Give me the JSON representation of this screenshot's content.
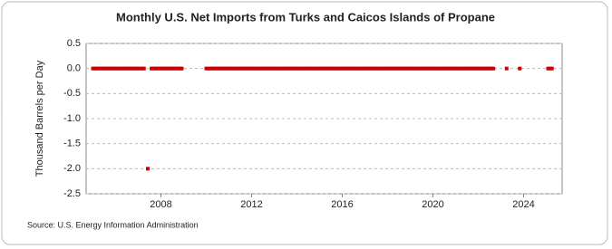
{
  "chart_data": {
    "type": "line",
    "title": "Monthly U.S. Net Imports from Turks and Caicos Islands of Propane",
    "y_label": "Thousand Barrels per Day",
    "source": "Source: U.S. Energy Information Administration",
    "color": "#cc0000",
    "xlim": [
      2004.7,
      2025.7
    ],
    "xticks": [
      2008,
      2012,
      2016,
      2020,
      2024
    ],
    "ylim": [
      -2.5,
      0.5
    ],
    "yticks": [
      0.5,
      {
        "value": 0,
        "label": "0.0"
      },
      -0.5,
      {
        "value": -1,
        "label": "-1.0"
      },
      -1.5,
      {
        "value": -2,
        "label": "-2.0"
      },
      -2.5
    ],
    "grid": true,
    "x": [
      2005,
      2005.08,
      2005.17,
      2005.25,
      2005.33,
      2005.42,
      2005.5,
      2005.58,
      2005.67,
      2005.75,
      2005.83,
      2005.92,
      2006,
      2006.08,
      2006.17,
      2006.25,
      2006.33,
      2006.42,
      2006.5,
      2006.58,
      2006.67,
      2006.75,
      2006.83,
      2006.92,
      2007,
      2007.08,
      2007.17,
      2007.25,
      2007.33,
      2007.42,
      2007.5,
      2007.58,
      2007.67,
      2007.75,
      2007.83,
      2007.92,
      2008,
      2008.08,
      2008.17,
      2008.25,
      2008.33,
      2008.42,
      2008.5,
      2008.58,
      2008.67,
      2008.75,
      2008.83,
      2008.92,
      2009.5,
      2010,
      2010.08,
      2010.17,
      2010.25,
      2010.33,
      2010.42,
      2010.5,
      2010.58,
      2010.67,
      2010.75,
      2010.83,
      2010.92,
      2011,
      2011.08,
      2011.17,
      2011.25,
      2011.33,
      2011.42,
      2011.5,
      2011.58,
      2011.67,
      2011.75,
      2011.83,
      2011.92,
      2012,
      2012.08,
      2012.17,
      2012.25,
      2012.33,
      2012.42,
      2012.5,
      2012.58,
      2012.67,
      2012.75,
      2012.83,
      2012.92,
      2013,
      2013.08,
      2013.17,
      2013.25,
      2013.33,
      2013.42,
      2013.5,
      2013.58,
      2013.67,
      2013.75,
      2013.83,
      2013.92,
      2014,
      2014.08,
      2014.17,
      2014.25,
      2014.33,
      2014.42,
      2014.5,
      2014.58,
      2014.67,
      2014.75,
      2014.83,
      2014.92,
      2015,
      2015.08,
      2015.17,
      2015.25,
      2015.33,
      2015.42,
      2015.5,
      2015.58,
      2015.67,
      2015.75,
      2015.83,
      2015.92,
      2016,
      2016.08,
      2016.17,
      2016.25,
      2016.33,
      2016.42,
      2016.5,
      2016.58,
      2016.67,
      2016.75,
      2016.83,
      2016.92,
      2017,
      2017.08,
      2017.17,
      2017.25,
      2017.33,
      2017.42,
      2017.5,
      2017.58,
      2017.67,
      2017.75,
      2017.83,
      2017.92,
      2018,
      2018.08,
      2018.17,
      2018.25,
      2018.33,
      2018.42,
      2018.5,
      2018.58,
      2018.67,
      2018.75,
      2018.83,
      2018.92,
      2019,
      2019.08,
      2019.17,
      2019.25,
      2019.33,
      2019.42,
      2019.5,
      2019.58,
      2019.67,
      2019.75,
      2019.83,
      2019.92,
      2020,
      2020.08,
      2020.17,
      2020.25,
      2020.33,
      2020.42,
      2020.5,
      2020.58,
      2020.67,
      2020.75,
      2020.83,
      2020.92,
      2021,
      2021.08,
      2021.17,
      2021.25,
      2021.33,
      2021.42,
      2021.5,
      2021.58,
      2021.67,
      2021.75,
      2021.83,
      2021.92,
      2022,
      2022.08,
      2022.17,
      2022.25,
      2022.33,
      2022.42,
      2022.5,
      2022.58,
      2022.67,
      2023,
      2023.25,
      2023.5,
      2023.83,
      2024.5,
      2025.08,
      2025.17,
      2025.25
    ],
    "values": [
      0,
      0,
      0,
      0,
      0,
      0,
      0,
      0,
      0,
      0,
      0,
      0,
      0,
      0,
      0,
      0,
      0,
      0,
      0,
      0,
      0,
      0,
      0,
      0,
      0,
      0,
      0,
      0,
      null,
      -2,
      null,
      0,
      0,
      0,
      0,
      0,
      0,
      0,
      0,
      0,
      0,
      0,
      0,
      0,
      0,
      0,
      0,
      0,
      null,
      0,
      0,
      0,
      0,
      0,
      0,
      0,
      0,
      0,
      0,
      0,
      0,
      0,
      0,
      0,
      0,
      0,
      0,
      0,
      0,
      0,
      0,
      0,
      0,
      0,
      0,
      0,
      0,
      0,
      0,
      0,
      0,
      0,
      0,
      0,
      0,
      0,
      0,
      0,
      0,
      0,
      0,
      0,
      0,
      0,
      0,
      0,
      0,
      0,
      0,
      0,
      0,
      0,
      0,
      0,
      0,
      0,
      0,
      0,
      0,
      0,
      0,
      0,
      0,
      0,
      0,
      0,
      0,
      0,
      0,
      0,
      0,
      0,
      0,
      0,
      0,
      0,
      0,
      0,
      0,
      0,
      0,
      0,
      0,
      0,
      0,
      0,
      0,
      0,
      0,
      0,
      0,
      0,
      0,
      0,
      0,
      0,
      0,
      0,
      0,
      0,
      0,
      0,
      0,
      0,
      0,
      0,
      0,
      0,
      0,
      0,
      0,
      0,
      0,
      0,
      0,
      0,
      0,
      0,
      0,
      0,
      0,
      0,
      0,
      0,
      0,
      0,
      0,
      0,
      0,
      0,
      0,
      0,
      0,
      0,
      0,
      0,
      0,
      0,
      0,
      0,
      0,
      0,
      0,
      0,
      0,
      0,
      0,
      0,
      0,
      0,
      0,
      0,
      null,
      0,
      null,
      0,
      null,
      0,
      0,
      0
    ]
  }
}
